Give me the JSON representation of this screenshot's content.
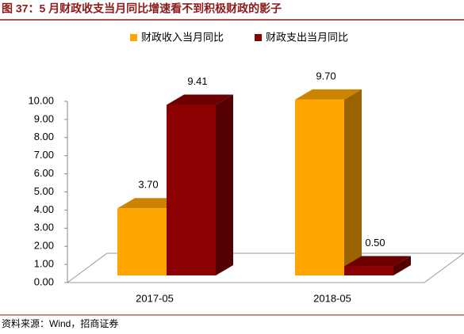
{
  "title": "图 37：5 月财政收支当月同比增速看不到积极财政的影子",
  "source": "资料来源：Wind，招商证券",
  "chart_data": {
    "type": "bar3d",
    "categories": [
      "2017-05",
      "2018-05"
    ],
    "series": [
      {
        "name": "财政收入当月同比",
        "color": "#FFA500",
        "values": [
          3.7,
          9.7
        ],
        "value_labels": [
          "3.70",
          "9.70"
        ]
      },
      {
        "name": "财政支出当月同比",
        "color": "#8B0000",
        "values": [
          9.41,
          0.5
        ],
        "value_labels": [
          "9.41",
          "0.50"
        ]
      }
    ],
    "ylim": [
      0,
      10
    ],
    "yticks": [
      {
        "value": 0,
        "label": "0.00"
      },
      {
        "value": 1,
        "label": "1.00"
      },
      {
        "value": 2,
        "label": "2.00"
      },
      {
        "value": 3,
        "label": "3.00"
      },
      {
        "value": 4,
        "label": "4.00"
      },
      {
        "value": 5,
        "label": "5.00"
      },
      {
        "value": 6,
        "label": "6.00"
      },
      {
        "value": 7,
        "label": "7.00"
      },
      {
        "value": 8,
        "label": "8.00"
      },
      {
        "value": 9,
        "label": "9.00"
      },
      {
        "value": 10,
        "label": "10.00"
      }
    ],
    "grid": false
  }
}
